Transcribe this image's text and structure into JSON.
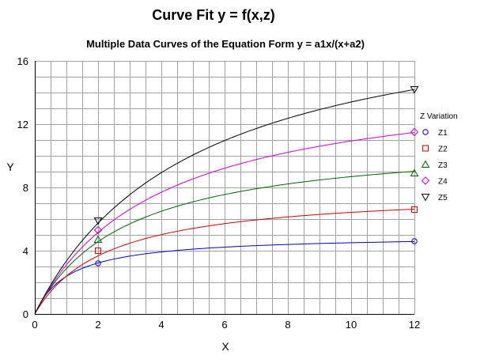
{
  "chart_data": {
    "type": "line",
    "title": "Curve Fit y = f(x,z)",
    "subtitle": "Multiple Data Curves of the Equation Form y = a1x/(x+a2)",
    "xlabel": "X",
    "ylabel": "Y",
    "xlim": [
      0,
      12
    ],
    "ylim": [
      0,
      16
    ],
    "xticks": [
      0,
      2,
      4,
      6,
      8,
      10,
      12
    ],
    "yticks": [
      0,
      4,
      8,
      12,
      16
    ],
    "grid": true,
    "legend": {
      "title": "Z Variation",
      "position": "right"
    },
    "equation_form": "y = a1x/(x+a2)",
    "series": [
      {
        "name": "Z1",
        "color": "#0000cc",
        "marker": "circle",
        "params": {
          "a1": 5.0,
          "a2": 1.1
        },
        "points": [
          {
            "x": 2,
            "y": 3.2
          },
          {
            "x": 12,
            "y": 4.6
          }
        ]
      },
      {
        "name": "Z2",
        "color": "#cc0000",
        "marker": "square",
        "params": {
          "a1": 7.9,
          "a2": 2.3
        },
        "points": [
          {
            "x": 2,
            "y": 4.0
          },
          {
            "x": 12,
            "y": 6.6
          }
        ]
      },
      {
        "name": "Z3",
        "color": "#006600",
        "marker": "triangle-up",
        "params": {
          "a1": 11.2,
          "a2": 2.9
        },
        "points": [
          {
            "x": 2,
            "y": 4.7
          },
          {
            "x": 12,
            "y": 8.9
          }
        ]
      },
      {
        "name": "Z4",
        "color": "#cc00cc",
        "marker": "diamond",
        "params": {
          "a1": 15.2,
          "a2": 3.9
        },
        "points": [
          {
            "x": 2,
            "y": 5.3
          },
          {
            "x": 12,
            "y": 11.5
          }
        ]
      },
      {
        "name": "Z5",
        "color": "#000000",
        "marker": "triangle-down",
        "params": {
          "a1": 20.1,
          "a2": 5.0
        },
        "points": [
          {
            "x": 2,
            "y": 5.9
          },
          {
            "x": 12,
            "y": 14.2
          }
        ]
      }
    ]
  }
}
